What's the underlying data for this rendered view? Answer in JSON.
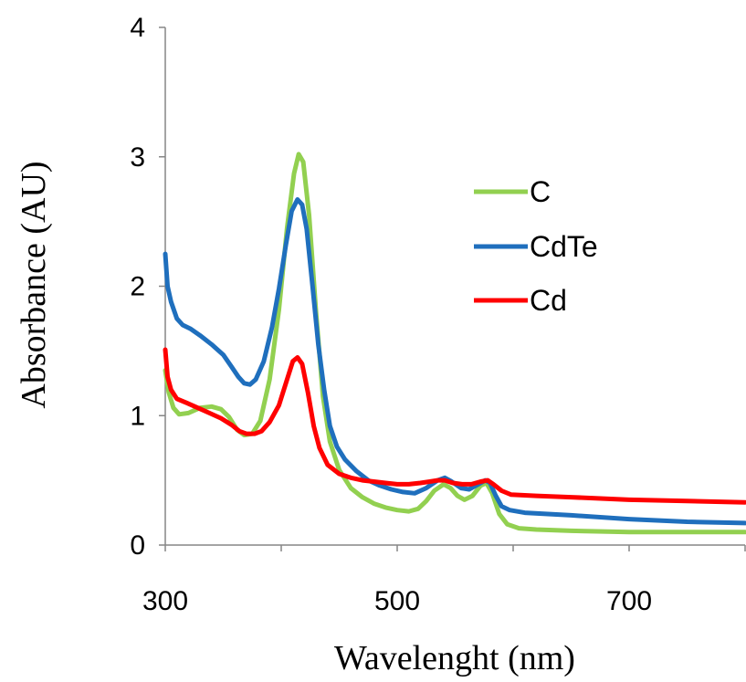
{
  "chart_data": {
    "type": "line",
    "xlabel": "Wavelenght (nm)",
    "ylabel": "Absorbance (AU)",
    "xlim": [
      300,
      800
    ],
    "ylim": [
      0,
      4
    ],
    "x_ticks": [
      "300",
      "500",
      "700"
    ],
    "x_tick_values": [
      300,
      500,
      700
    ],
    "y_ticks": [
      "0",
      "1",
      "2",
      "3",
      "4"
    ],
    "y_tick_values": [
      0,
      1,
      2,
      3,
      4
    ],
    "grid": false,
    "legend_position": "right",
    "series": [
      {
        "name": "C",
        "color": "#92d050",
        "points": [
          [
            300,
            1.35
          ],
          [
            303,
            1.18
          ],
          [
            307,
            1.06
          ],
          [
            312,
            1.01
          ],
          [
            320,
            1.02
          ],
          [
            330,
            1.06
          ],
          [
            340,
            1.07
          ],
          [
            348,
            1.05
          ],
          [
            355,
            0.99
          ],
          [
            362,
            0.89
          ],
          [
            368,
            0.85
          ],
          [
            375,
            0.86
          ],
          [
            382,
            0.96
          ],
          [
            390,
            1.28
          ],
          [
            398,
            1.82
          ],
          [
            405,
            2.45
          ],
          [
            411,
            2.87
          ],
          [
            415,
            3.02
          ],
          [
            419,
            2.96
          ],
          [
            424,
            2.55
          ],
          [
            430,
            1.8
          ],
          [
            436,
            1.15
          ],
          [
            442,
            0.8
          ],
          [
            450,
            0.58
          ],
          [
            460,
            0.44
          ],
          [
            470,
            0.37
          ],
          [
            480,
            0.32
          ],
          [
            490,
            0.29
          ],
          [
            500,
            0.27
          ],
          [
            510,
            0.26
          ],
          [
            518,
            0.28
          ],
          [
            525,
            0.34
          ],
          [
            532,
            0.42
          ],
          [
            540,
            0.47
          ],
          [
            546,
            0.44
          ],
          [
            552,
            0.38
          ],
          [
            558,
            0.35
          ],
          [
            565,
            0.38
          ],
          [
            572,
            0.46
          ],
          [
            577,
            0.48
          ],
          [
            582,
            0.4
          ],
          [
            588,
            0.24
          ],
          [
            595,
            0.16
          ],
          [
            605,
            0.13
          ],
          [
            620,
            0.12
          ],
          [
            650,
            0.11
          ],
          [
            700,
            0.1
          ],
          [
            750,
            0.1
          ],
          [
            800,
            0.1
          ]
        ]
      },
      {
        "name": "CdTe",
        "color": "#1f6fbd",
        "points": [
          [
            300,
            2.25
          ],
          [
            302,
            2.0
          ],
          [
            305,
            1.88
          ],
          [
            310,
            1.75
          ],
          [
            315,
            1.7
          ],
          [
            322,
            1.67
          ],
          [
            330,
            1.62
          ],
          [
            340,
            1.55
          ],
          [
            350,
            1.47
          ],
          [
            357,
            1.38
          ],
          [
            363,
            1.3
          ],
          [
            368,
            1.25
          ],
          [
            373,
            1.24
          ],
          [
            378,
            1.28
          ],
          [
            385,
            1.42
          ],
          [
            392,
            1.68
          ],
          [
            398,
            1.98
          ],
          [
            404,
            2.32
          ],
          [
            409,
            2.58
          ],
          [
            414,
            2.67
          ],
          [
            418,
            2.63
          ],
          [
            422,
            2.44
          ],
          [
            427,
            2.0
          ],
          [
            432,
            1.55
          ],
          [
            437,
            1.2
          ],
          [
            442,
            0.92
          ],
          [
            448,
            0.76
          ],
          [
            455,
            0.66
          ],
          [
            465,
            0.57
          ],
          [
            475,
            0.5
          ],
          [
            485,
            0.46
          ],
          [
            495,
            0.43
          ],
          [
            505,
            0.41
          ],
          [
            515,
            0.4
          ],
          [
            525,
            0.44
          ],
          [
            535,
            0.5
          ],
          [
            541,
            0.52
          ],
          [
            547,
            0.49
          ],
          [
            555,
            0.44
          ],
          [
            562,
            0.43
          ],
          [
            570,
            0.47
          ],
          [
            576,
            0.5
          ],
          [
            580,
            0.48
          ],
          [
            585,
            0.38
          ],
          [
            590,
            0.3
          ],
          [
            597,
            0.27
          ],
          [
            610,
            0.25
          ],
          [
            650,
            0.23
          ],
          [
            700,
            0.2
          ],
          [
            750,
            0.18
          ],
          [
            800,
            0.17
          ]
        ]
      },
      {
        "name": "Cd",
        "color": "#ff0000",
        "points": [
          [
            300,
            1.51
          ],
          [
            302,
            1.3
          ],
          [
            305,
            1.2
          ],
          [
            310,
            1.13
          ],
          [
            318,
            1.1
          ],
          [
            328,
            1.06
          ],
          [
            338,
            1.02
          ],
          [
            348,
            0.98
          ],
          [
            357,
            0.93
          ],
          [
            364,
            0.88
          ],
          [
            370,
            0.86
          ],
          [
            377,
            0.86
          ],
          [
            383,
            0.88
          ],
          [
            390,
            0.95
          ],
          [
            398,
            1.08
          ],
          [
            405,
            1.28
          ],
          [
            410,
            1.42
          ],
          [
            414,
            1.45
          ],
          [
            418,
            1.4
          ],
          [
            423,
            1.18
          ],
          [
            428,
            0.92
          ],
          [
            433,
            0.75
          ],
          [
            440,
            0.62
          ],
          [
            450,
            0.55
          ],
          [
            460,
            0.52
          ],
          [
            470,
            0.5
          ],
          [
            480,
            0.49
          ],
          [
            490,
            0.48
          ],
          [
            500,
            0.47
          ],
          [
            510,
            0.47
          ],
          [
            520,
            0.48
          ],
          [
            528,
            0.49
          ],
          [
            535,
            0.5
          ],
          [
            541,
            0.5
          ],
          [
            548,
            0.48
          ],
          [
            556,
            0.47
          ],
          [
            564,
            0.47
          ],
          [
            572,
            0.49
          ],
          [
            578,
            0.5
          ],
          [
            583,
            0.47
          ],
          [
            590,
            0.42
          ],
          [
            598,
            0.39
          ],
          [
            620,
            0.38
          ],
          [
            650,
            0.37
          ],
          [
            700,
            0.35
          ],
          [
            750,
            0.34
          ],
          [
            800,
            0.33
          ]
        ]
      }
    ]
  }
}
